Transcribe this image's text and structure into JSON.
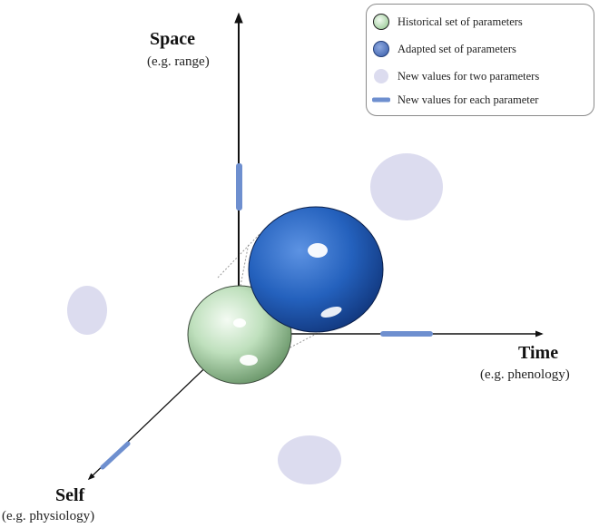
{
  "axes": {
    "space": {
      "title": "Space",
      "subtitle": "(e.g. range)"
    },
    "time": {
      "title": "Time",
      "subtitle": "(e.g. phenology)"
    },
    "self": {
      "title": "Self",
      "subtitle": "(e.g. physiology)"
    }
  },
  "legend": {
    "items": [
      {
        "label": "Historical set of parameters",
        "icon": "green-sphere-icon"
      },
      {
        "label": "Adapted set of parameters",
        "icon": "blue-sphere-icon"
      },
      {
        "label": "New values for two parameters",
        "icon": "lavender-disc-icon"
      },
      {
        "label": "New values for each parameter",
        "icon": "blue-bar-icon"
      }
    ]
  },
  "colors": {
    "historical": "#b6dcb4",
    "adapted": "#2f63b5",
    "new_two": "#dcdcef",
    "new_each": "#6e8fcf",
    "axis": "#111111"
  }
}
